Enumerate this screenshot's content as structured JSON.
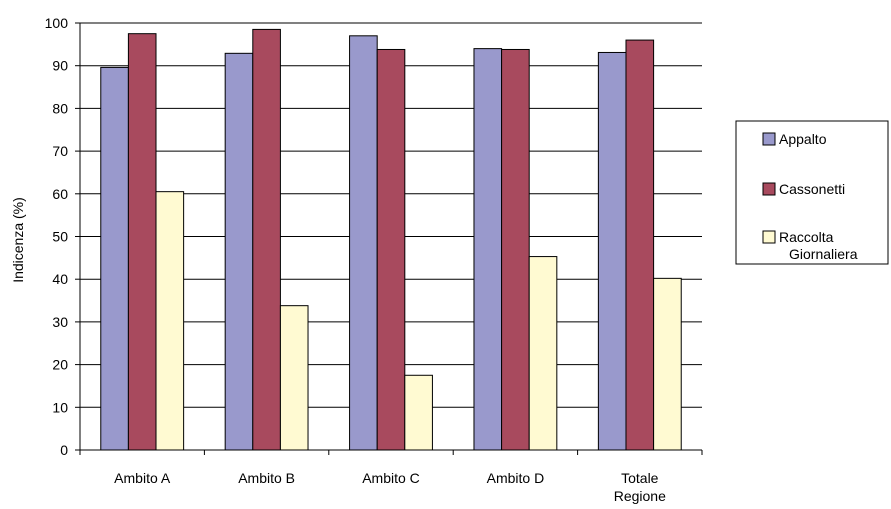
{
  "chart_data": {
    "type": "bar",
    "title": "",
    "xlabel": "",
    "ylabel": "Indicenza (%)",
    "ylim": [
      0,
      100
    ],
    "yticks": [
      0,
      10,
      20,
      30,
      40,
      50,
      60,
      70,
      80,
      90,
      100
    ],
    "grid": true,
    "legend_position": "right",
    "categories": [
      {
        "lines": [
          "Ambito A"
        ]
      },
      {
        "lines": [
          "Ambito B"
        ]
      },
      {
        "lines": [
          "Ambito C"
        ]
      },
      {
        "lines": [
          "Ambito D"
        ]
      },
      {
        "lines": [
          "Totale",
          "Regione"
        ]
      }
    ],
    "series": [
      {
        "name": "Appalto",
        "legend_lines": [
          "Appalto"
        ],
        "color": "#9999cc",
        "values": [
          89.6,
          92.9,
          97.0,
          94.0,
          93.1
        ]
      },
      {
        "name": "Cassonetti",
        "legend_lines": [
          "Cassonetti"
        ],
        "color": "#a84a5e",
        "values": [
          97.5,
          98.5,
          93.8,
          93.8,
          96.0
        ]
      },
      {
        "name": "Raccolta Giornaliera",
        "legend_lines": [
          "Raccolta",
          "Giornaliera"
        ],
        "color": "#fffad2",
        "values": [
          60.5,
          33.8,
          17.5,
          45.3,
          40.2
        ]
      }
    ]
  }
}
